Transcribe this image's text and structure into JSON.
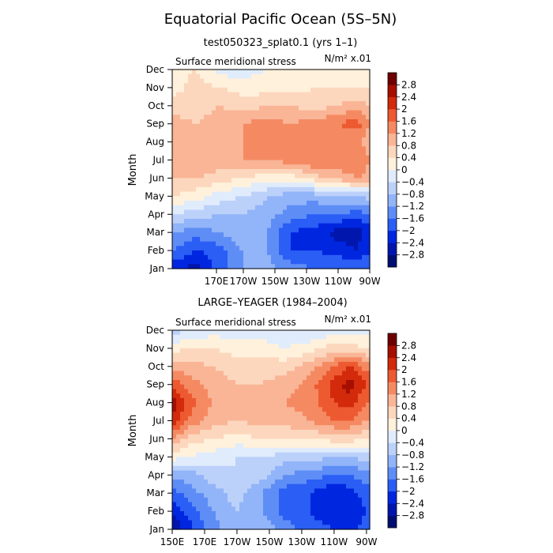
{
  "page": {
    "title": "Equatorial Pacific Ocean (5S–5N)"
  },
  "chart_data": [
    {
      "type": "heatmap",
      "subtitle": "test050323_splat0.1 (yrs 1–1)",
      "variable_label": "Surface meridional stress",
      "unit_label": "N/m² x.01",
      "ylabel": "Month",
      "x_ticks": [
        "170E",
        "170W",
        "150W",
        "130W",
        "110W",
        "90W"
      ],
      "y_ticks": [
        "Jan",
        "Feb",
        "Mar",
        "Apr",
        "May",
        "Jun",
        "Jul",
        "Aug",
        "Sep",
        "Oct",
        "Nov",
        "Dec"
      ],
      "x_range_deg_east": [
        145,
        270
      ],
      "colorbar_ticks": [
        "2.8",
        "2.4",
        "2",
        "1.6",
        "1.2",
        "0.8",
        "0.4",
        "0",
        "−0.4",
        "−0.8",
        "−1.2",
        "−1.6",
        "−2",
        "−2.4",
        "−2.8"
      ],
      "lon": [
        145,
        160,
        175,
        190,
        205,
        220,
        235,
        250,
        262,
        270
      ],
      "z": [
        [
          -2.2,
          -2.6,
          -1.8,
          -1.2,
          -1.0,
          -1.4,
          -1.6,
          -1.6,
          -1.6,
          -1.6
        ],
        [
          -1.6,
          -2.0,
          -1.8,
          -1.2,
          -1.2,
          -2.0,
          -2.0,
          -2.2,
          -2.4,
          -2.0
        ],
        [
          -1.2,
          -1.4,
          -1.2,
          -0.8,
          -1.2,
          -2.0,
          -2.2,
          -2.6,
          -2.6,
          -2.2
        ],
        [
          -0.4,
          -0.6,
          -0.8,
          -0.8,
          -1.0,
          -1.4,
          -1.6,
          -1.6,
          -1.8,
          -1.6
        ],
        [
          0.4,
          0.2,
          -0.2,
          -0.4,
          -0.8,
          -1.0,
          -1.0,
          -0.8,
          -0.8,
          -0.6
        ],
        [
          0.8,
          0.8,
          0.6,
          0.4,
          0.2,
          0.2,
          0.6,
          1.0,
          1.2,
          1.0
        ],
        [
          1.0,
          1.2,
          1.0,
          1.2,
          1.2,
          1.4,
          1.6,
          1.4,
          1.6,
          1.2
        ],
        [
          1.0,
          1.2,
          1.0,
          1.2,
          1.2,
          1.4,
          1.6,
          1.2,
          1.2,
          1.0
        ],
        [
          1.0,
          0.8,
          1.0,
          1.2,
          1.4,
          1.2,
          1.4,
          1.6,
          1.8,
          1.2
        ],
        [
          0.6,
          0.6,
          0.8,
          0.6,
          0.8,
          0.8,
          0.6,
          0.8,
          1.0,
          0.8
        ],
        [
          0.2,
          0.6,
          0.4,
          0.2,
          0.2,
          0.2,
          0.4,
          0.4,
          0.4,
          0.4
        ],
        [
          0.2,
          0.4,
          -0.2,
          -0.2,
          0.0,
          0.2,
          0.2,
          0.2,
          0.2,
          0.2
        ]
      ]
    },
    {
      "type": "heatmap",
      "subtitle": "LARGE–YEAGER (1984–2004)",
      "variable_label": "Surface meridional stress",
      "unit_label": "N/m² x.01",
      "ylabel": "Month",
      "x_ticks": [
        "150E",
        "170E",
        "170W",
        "150W",
        "130W",
        "110W",
        "90W"
      ],
      "y_ticks": [
        "Jan",
        "Feb",
        "Mar",
        "Apr",
        "May",
        "Jun",
        "Jul",
        "Aug",
        "Sep",
        "Oct",
        "Nov",
        "Dec"
      ],
      "x_range_deg_east": [
        150,
        272
      ],
      "colorbar_ticks": [
        "2.8",
        "2.4",
        "2",
        "1.6",
        "1.2",
        "0.8",
        "0.4",
        "0",
        "−0.4",
        "−0.8",
        "−1.2",
        "−1.6",
        "−2",
        "−2.4",
        "−2.8"
      ],
      "lon": [
        150,
        160,
        175,
        190,
        205,
        220,
        235,
        250,
        260,
        270
      ],
      "z": [
        [
          -2.8,
          -2.2,
          -1.4,
          -0.8,
          -0.8,
          -1.4,
          -1.8,
          -2.0,
          -2.2,
          -1.8
        ],
        [
          -2.4,
          -1.8,
          -1.2,
          -0.8,
          -1.2,
          -1.8,
          -2.0,
          -2.4,
          -2.4,
          -2.0
        ],
        [
          -1.8,
          -1.4,
          -1.0,
          -0.6,
          -1.2,
          -1.8,
          -2.0,
          -2.4,
          -2.2,
          -1.8
        ],
        [
          -1.0,
          -1.0,
          -0.6,
          -0.4,
          -0.6,
          -1.2,
          -1.4,
          -1.6,
          -1.6,
          -1.4
        ],
        [
          0.2,
          0.0,
          -0.2,
          -0.4,
          -0.4,
          -0.6,
          -0.6,
          -0.8,
          -0.8,
          -0.6
        ],
        [
          1.2,
          0.6,
          0.4,
          0.2,
          0.4,
          0.4,
          0.4,
          0.6,
          0.6,
          0.4
        ],
        [
          2.4,
          1.6,
          1.0,
          0.8,
          1.0,
          1.0,
          1.2,
          1.6,
          1.6,
          1.2
        ],
        [
          2.6,
          1.8,
          1.2,
          0.8,
          1.0,
          1.2,
          1.4,
          2.0,
          2.2,
          1.6
        ],
        [
          2.0,
          1.4,
          1.0,
          0.8,
          0.8,
          1.0,
          1.4,
          2.2,
          2.6,
          2.0
        ],
        [
          1.0,
          1.0,
          0.8,
          0.6,
          0.6,
          0.6,
          1.0,
          1.6,
          2.0,
          1.4
        ],
        [
          0.2,
          0.4,
          0.4,
          0.2,
          0.2,
          0.0,
          0.2,
          0.6,
          0.6,
          0.4
        ],
        [
          -0.6,
          -0.4,
          -0.2,
          -0.2,
          -0.2,
          -0.4,
          -0.4,
          -0.2,
          -0.2,
          -0.2
        ]
      ]
    }
  ],
  "colorscale": [
    "#000e72",
    "#0016ad",
    "#0026e0",
    "#2a5ef5",
    "#5e8df6",
    "#92b4f8",
    "#bcd1fa",
    "#e0ecfc",
    "#fff1db",
    "#fcd7bd",
    "#f9b596",
    "#f58a62",
    "#ed5a31",
    "#d22a0b",
    "#a60f00",
    "#6e0000"
  ]
}
